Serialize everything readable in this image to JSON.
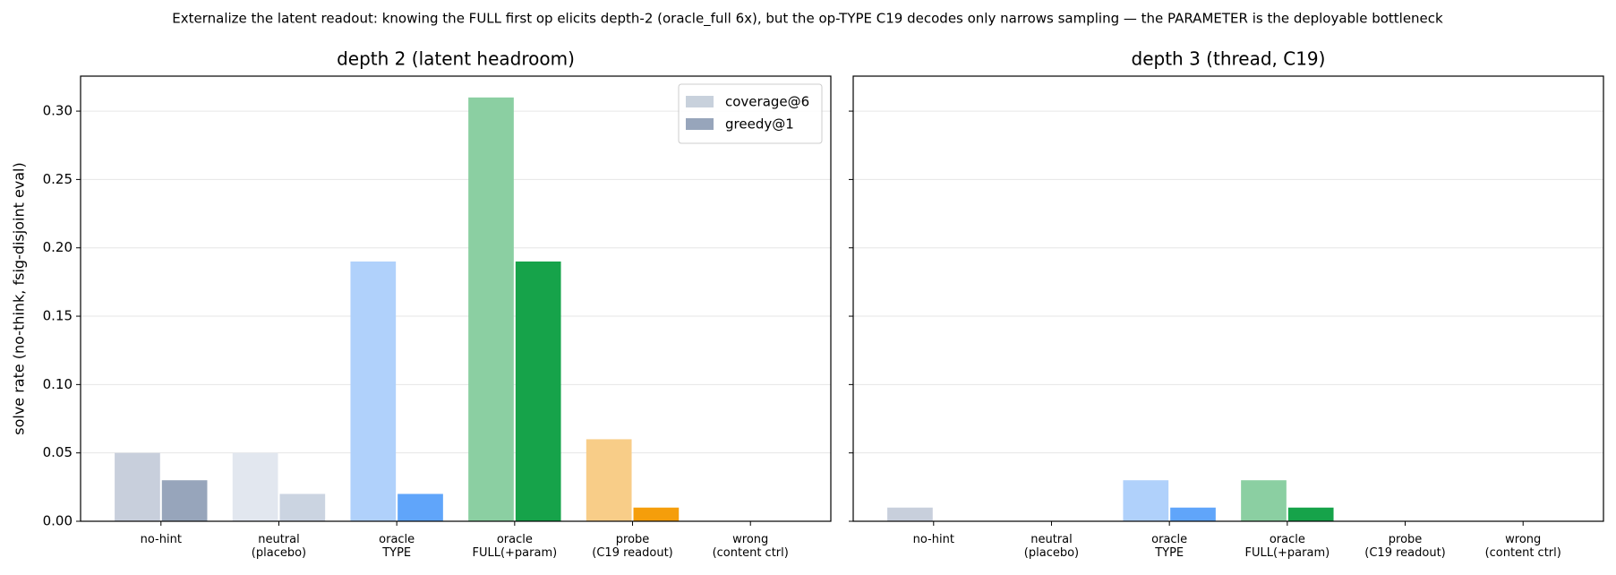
{
  "title": "Externalize the latent readout: knowing the FULL first op elicits depth-2 (oracle_full 6x), but the op-TYPE C19 decodes only narrows sampling — the PARAMETER is the deployable bottleneck",
  "chart_data": [
    {
      "type": "bar",
      "title": "depth 2 (latent headroom)",
      "ylabel": "solve rate (no-think, fsig-disjoint eval)",
      "categories": [
        [
          "no-hint"
        ],
        [
          "neutral",
          "(placebo)"
        ],
        [
          "oracle",
          "TYPE"
        ],
        [
          "oracle",
          "FULL(+param)"
        ],
        [
          "probe",
          "(C19 readout)"
        ],
        [
          "wrong",
          "(content ctrl)"
        ]
      ],
      "series": [
        {
          "name": "coverage@6",
          "color": "#c8d1dc",
          "colors": [
            "#c8cfdc",
            "#e2e7ef",
            "#b0d1fb",
            "#8bcfa2",
            "#f8cd88",
            "#e2e7ef"
          ],
          "values": [
            0.05,
            0.05,
            0.19,
            0.31,
            0.06,
            0
          ]
        },
        {
          "name": "greedy@1",
          "color": "#97a5bb",
          "colors": [
            "#97a5bb",
            "#cbd4e1",
            "#60a5fa",
            "#16a34a",
            "#f59e0b",
            "#cbd4e1"
          ],
          "values": [
            0.03,
            0.02,
            0.02,
            0.19,
            0.01,
            0
          ]
        }
      ],
      "ylim": [
        0,
        0.3256
      ],
      "yticks": [
        {
          "value": 0,
          "label": "0.00"
        },
        {
          "value": 0.05,
          "label": "0.05"
        },
        {
          "value": 0.1,
          "label": "0.10"
        },
        {
          "value": 0.15,
          "label": "0.15"
        },
        {
          "value": 0.2,
          "label": "0.20"
        },
        {
          "value": 0.25,
          "label": "0.25"
        },
        {
          "value": 0.3,
          "label": "0.30"
        }
      ],
      "grid": true,
      "legend": "upper right"
    },
    {
      "type": "bar",
      "title": "depth 3 (thread, C19)",
      "categories": [
        [
          "no-hint"
        ],
        [
          "neutral",
          "(placebo)"
        ],
        [
          "oracle",
          "TYPE"
        ],
        [
          "oracle",
          "FULL(+param)"
        ],
        [
          "probe",
          "(C19 readout)"
        ],
        [
          "wrong",
          "(content ctrl)"
        ]
      ],
      "series": [
        {
          "colors": [
            "#c8cfdc",
            "#e2e7ef",
            "#b0d1fb",
            "#8bcfa2",
            "#f8cd88",
            "#e2e7ef"
          ],
          "values": [
            0.01,
            0,
            0.03,
            0.03,
            0,
            0
          ]
        },
        {
          "colors": [
            "#97a5bb",
            "#cbd4e1",
            "#60a5fa",
            "#16a34a",
            "#f59e0b",
            "#cbd4e1"
          ],
          "values": [
            0,
            0,
            0.01,
            0.01,
            0,
            0
          ]
        }
      ],
      "ylim": [
        0,
        0.3256
      ],
      "yticks": [
        0,
        0.05,
        0.1,
        0.15,
        0.2,
        0.25,
        0.3
      ],
      "grid": true
    }
  ]
}
